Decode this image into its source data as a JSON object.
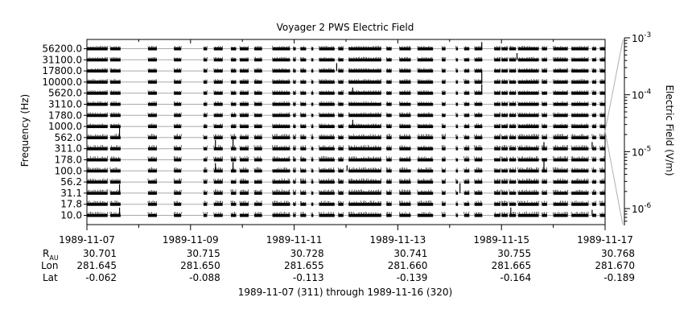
{
  "chart_data": {
    "type": "line",
    "title": "Voyager 2 PWS Electric Field",
    "ylabel": "Frequency (Hz)",
    "y2label": "Electric Field (V/m)",
    "channels": [
      "10.0",
      "17.8",
      "31.1",
      "56.2",
      "100.0",
      "178.0",
      "311.0",
      "562.0",
      "1000.0",
      "1780.0",
      "3110.0",
      "5620.0",
      "10000.0",
      "17800.0",
      "31100.0",
      "56200.0"
    ],
    "y2_ticks": [
      {
        "base": "10",
        "exp": "-3",
        "value": 0.001
      },
      {
        "base": "10",
        "exp": "-4",
        "value": 0.0001
      },
      {
        "base": "10",
        "exp": "-5",
        "value": 1e-05
      },
      {
        "base": "10",
        "exp": "-6",
        "value": 1e-06
      }
    ],
    "y2_scale": "log",
    "x_ticks": [
      "1989-11-07",
      "1989-11-09",
      "1989-11-11",
      "1989-11-13",
      "1989-11-15",
      "1989-11-17"
    ],
    "xlim": [
      "1989-11-07",
      "1989-11-17"
    ],
    "ephemeris": {
      "r_label": "R",
      "r_sub": "AU",
      "lon_label": "Lon",
      "lat_label": "Lat",
      "r": [
        "30.701",
        "30.715",
        "30.728",
        "30.741",
        "30.755",
        "30.768"
      ],
      "lon": [
        "281.645",
        "281.650",
        "281.655",
        "281.660",
        "281.665",
        "281.670"
      ],
      "lat": [
        "-0.062",
        "-0.088",
        "-0.113",
        "-0.139",
        "-0.164",
        "-0.189"
      ]
    },
    "xlabel": "1989-11-07 (311) through 1989-11-16 (320)",
    "data_segments": [
      [
        0.0,
        0.04
      ],
      [
        0.045,
        0.065
      ],
      [
        0.118,
        0.135
      ],
      [
        0.168,
        0.182
      ],
      [
        0.225,
        0.232
      ],
      [
        0.245,
        0.262
      ],
      [
        0.278,
        0.288
      ],
      [
        0.295,
        0.312
      ],
      [
        0.323,
        0.338
      ],
      [
        0.358,
        0.392
      ],
      [
        0.398,
        0.403
      ],
      [
        0.412,
        0.423
      ],
      [
        0.433,
        0.437
      ],
      [
        0.448,
        0.478
      ],
      [
        0.485,
        0.495
      ],
      [
        0.505,
        0.568
      ],
      [
        0.578,
        0.588
      ],
      [
        0.603,
        0.625
      ],
      [
        0.638,
        0.668
      ],
      [
        0.685,
        0.692
      ],
      [
        0.712,
        0.716
      ],
      [
        0.728,
        0.738
      ],
      [
        0.748,
        0.763
      ],
      [
        0.786,
        0.798
      ],
      [
        0.8,
        0.812
      ],
      [
        0.815,
        0.828
      ],
      [
        0.832,
        0.872
      ],
      [
        0.878,
        0.888
      ],
      [
        0.9,
        0.928
      ],
      [
        0.935,
        0.968
      ],
      [
        0.975,
        0.983
      ],
      [
        0.99,
        1.0
      ]
    ],
    "spikes": [
      {
        "t": 0.063,
        "channel": "562.0",
        "height": 0.9
      },
      {
        "t": 0.063,
        "channel": "31.1",
        "height": 0.8
      },
      {
        "t": 0.063,
        "channel": "10.0",
        "height": 0.7
      },
      {
        "t": 0.248,
        "channel": "311.0",
        "height": 0.8
      },
      {
        "t": 0.248,
        "channel": "100.0",
        "height": 0.7
      },
      {
        "t": 0.282,
        "channel": "311.0",
        "height": 0.9
      },
      {
        "t": 0.282,
        "channel": "100.0",
        "height": 0.8
      },
      {
        "t": 0.482,
        "channel": "17800.0",
        "height": 0.7
      },
      {
        "t": 0.513,
        "channel": "1000.0",
        "height": 0.6
      },
      {
        "t": 0.513,
        "channel": "5620.0",
        "height": 0.5
      },
      {
        "t": 0.502,
        "channel": "100.0",
        "height": 0.5
      },
      {
        "t": 0.72,
        "channel": "31.1",
        "height": 0.9
      },
      {
        "t": 0.762,
        "channel": "56200.0",
        "height": 0.6
      },
      {
        "t": 0.762,
        "channel": "10000.0",
        "height": 0.9
      },
      {
        "t": 0.762,
        "channel": "5620.0",
        "height": 0.8
      },
      {
        "t": 0.83,
        "channel": "31100.0",
        "height": 0.6
      },
      {
        "t": 0.818,
        "channel": "10.0",
        "height": 0.7
      },
      {
        "t": 0.882,
        "channel": "311.0",
        "height": 0.6
      },
      {
        "t": 0.882,
        "channel": "100.0",
        "height": 0.9
      },
      {
        "t": 0.975,
        "channel": "311.0",
        "height": 0.6
      },
      {
        "t": 0.975,
        "channel": "10.0",
        "height": 0.5
      }
    ]
  }
}
